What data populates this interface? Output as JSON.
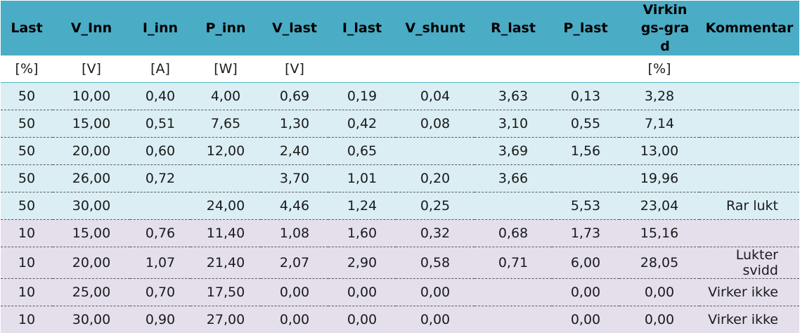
{
  "headers": [
    "Last",
    "V_Inn",
    "I_inn",
    "P_inn",
    "V_last",
    "I_last",
    "V_shunt",
    "R_last",
    "P_last",
    "Virkings-grad",
    "Kommentar"
  ],
  "units": [
    "[%]",
    "[V]",
    "[A]",
    "[W]",
    "[V]",
    "",
    "",
    "",
    "",
    "[%]",
    ""
  ],
  "rows": [
    {
      "group": "blue",
      "cells": [
        "50",
        "10,00",
        "0,40",
        "4,00",
        "0,69",
        "0,19",
        "0,04",
        "3,63",
        "0,13",
        "3,28",
        ""
      ]
    },
    {
      "group": "blue",
      "cells": [
        "50",
        "15,00",
        "0,51",
        "7,65",
        "1,30",
        "0,42",
        "0,08",
        "3,10",
        "0,55",
        "7,14",
        ""
      ]
    },
    {
      "group": "blue",
      "cells": [
        "50",
        "20,00",
        "0,60",
        "12,00",
        "2,40",
        "0,65",
        "",
        "3,69",
        "1,56",
        "13,00",
        ""
      ]
    },
    {
      "group": "blue",
      "cells": [
        "50",
        "26,00",
        "0,72",
        "",
        "3,70",
        "1,01",
        "0,20",
        "3,66",
        "",
        "19,96",
        ""
      ]
    },
    {
      "group": "blue",
      "cells": [
        "50",
        "30,00",
        "",
        "24,00",
        "4,46",
        "1,24",
        "0,25",
        "",
        "5,53",
        "23,04",
        "Rar lukt"
      ]
    },
    {
      "group": "purple",
      "cells": [
        "10",
        "15,00",
        "0,76",
        "11,40",
        "1,08",
        "1,60",
        "0,32",
        "0,68",
        "1,73",
        "15,16",
        ""
      ]
    },
    {
      "group": "purple",
      "cells": [
        "10",
        "20,00",
        "1,07",
        "21,40",
        "2,07",
        "2,90",
        "0,58",
        "0,71",
        "6,00",
        "28,05",
        "Lukter svidd"
      ]
    },
    {
      "group": "purple",
      "cells": [
        "10",
        "25,00",
        "0,70",
        "17,50",
        "0,00",
        "0,00",
        "0,00",
        "",
        "0,00",
        "0,00",
        "Virker ikke"
      ]
    },
    {
      "group": "purple",
      "cells": [
        "10",
        "30,00",
        "0,90",
        "27,00",
        "0,00",
        "0,00",
        "0,00",
        "",
        "0,00",
        "0,00",
        "Virker ikke"
      ]
    }
  ],
  "colors": {
    "header": "#4bacc6",
    "group_a": "#daeef3",
    "group_b": "#e5dfec"
  }
}
